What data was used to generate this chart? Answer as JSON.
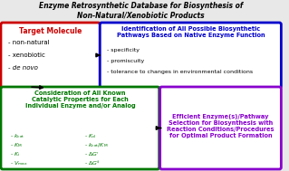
{
  "title_line1": "Enzyme Retrosynthetic Database for Biosynthesis of",
  "title_line2": "Non-Natural/Xenobiotic Products",
  "bg_color": "#e8e8e8",
  "box_red": {
    "title": "Target Molecule",
    "title_color": "#cc0000",
    "border_color": "#cc0000",
    "bg_color": "#ffffff",
    "items": [
      "- non-natural",
      "- xenobiotic",
      "- de novo"
    ],
    "items_italic": [
      false,
      false,
      true
    ]
  },
  "box_blue": {
    "title": "Identification of All Possible Biosynthetic\nPathways Based on Native Enzyme Function",
    "title_color": "#0000cc",
    "border_color": "#0000cc",
    "bg_color": "#ffffff",
    "items": [
      "- specificity",
      "- promiscuity",
      "- tolerance to changes in environmental conditions"
    ]
  },
  "box_green": {
    "title": "Consideration of All Known\nCatalytic Properties for Each\nIndividual Enzyme and/or Analog",
    "title_color": "#007700",
    "border_color": "#007700",
    "bg_color": "#ffffff"
  },
  "box_purple": {
    "title": "Efficient Enzyme(s)/Pathway\nSelection for Biosynthesis with\nReaction Conditions/Procedures\nfor Optimal Product Formation",
    "title_color": "#8800cc",
    "border_color": "#8800cc",
    "bg_color": "#ffffff"
  }
}
